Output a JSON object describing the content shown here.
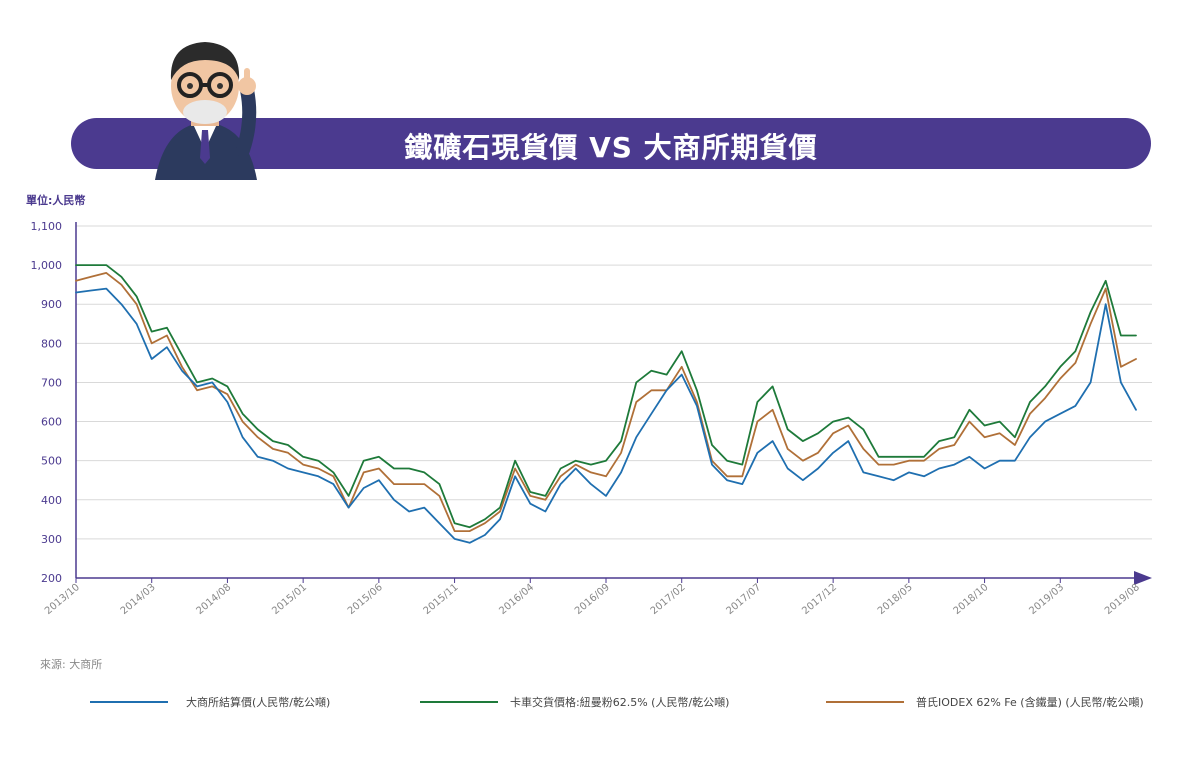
{
  "header": {
    "title": "鐵礦石現貨價 VS 大商所期貨價"
  },
  "unit_label": "單位:人民幣",
  "source": "來源: 大商所",
  "colors": {
    "accent": "#4b3a8f",
    "axis": "#4b3a8f",
    "grid": "#d9d9d9"
  },
  "chart_data": {
    "type": "line",
    "ylim": [
      200,
      1100
    ],
    "yticks": [
      200,
      300,
      400,
      500,
      600,
      700,
      800,
      900,
      1000,
      1100
    ],
    "ytick_labels": [
      "200",
      "300",
      "400",
      "500",
      "600",
      "700",
      "800",
      "900",
      "1,000",
      "1,100"
    ],
    "xticks": [
      "2013/10",
      "2014/03",
      "2014/08",
      "2015/01",
      "2015/06",
      "2015/11",
      "2016/04",
      "2016/09",
      "2017/02",
      "2017/07",
      "2017/12",
      "2018/05",
      "2018/10",
      "2019/03",
      "2019/08"
    ],
    "grid": true,
    "legend_position": "bottom",
    "x": [
      "2013/10",
      "2013/11",
      "2013/12",
      "2014/01",
      "2014/02",
      "2014/03",
      "2014/04",
      "2014/05",
      "2014/06",
      "2014/07",
      "2014/08",
      "2014/09",
      "2014/10",
      "2014/11",
      "2014/12",
      "2015/01",
      "2015/02",
      "2015/03",
      "2015/04",
      "2015/05",
      "2015/06",
      "2015/07",
      "2015/08",
      "2015/09",
      "2015/10",
      "2015/11",
      "2015/12",
      "2016/01",
      "2016/02",
      "2016/03",
      "2016/04",
      "2016/05",
      "2016/06",
      "2016/07",
      "2016/08",
      "2016/09",
      "2016/10",
      "2016/11",
      "2016/12",
      "2017/01",
      "2017/02",
      "2017/03",
      "2017/04",
      "2017/05",
      "2017/06",
      "2017/07",
      "2017/08",
      "2017/09",
      "2017/10",
      "2017/11",
      "2017/12",
      "2018/01",
      "2018/02",
      "2018/03",
      "2018/04",
      "2018/05",
      "2018/06",
      "2018/07",
      "2018/08",
      "2018/09",
      "2018/10",
      "2018/11",
      "2018/12",
      "2019/01",
      "2019/02",
      "2019/03",
      "2019/04",
      "2019/05",
      "2019/06",
      "2019/07",
      "2019/08"
    ],
    "series": [
      {
        "name": "大商所結算價(人民幣/乾公噸)",
        "color": "#1f6fb0",
        "values": [
          930,
          935,
          940,
          900,
          850,
          760,
          790,
          730,
          690,
          700,
          650,
          560,
          510,
          500,
          480,
          470,
          460,
          440,
          380,
          430,
          450,
          400,
          370,
          380,
          340,
          300,
          290,
          310,
          350,
          460,
          390,
          370,
          440,
          480,
          440,
          410,
          470,
          560,
          620,
          680,
          720,
          640,
          490,
          450,
          440,
          520,
          550,
          480,
          450,
          480,
          520,
          550,
          470,
          460,
          450,
          470,
          460,
          480,
          490,
          510,
          480,
          500,
          500,
          560,
          600,
          620,
          640,
          700,
          900,
          700,
          630
        ]
      },
      {
        "name": "卡車交貨價格:紐曼粉62.5% (人民幣/乾公噸)",
        "color": "#1e7a3a",
        "values": [
          1000,
          1000,
          1000,
          970,
          920,
          830,
          840,
          770,
          700,
          710,
          690,
          620,
          580,
          550,
          540,
          510,
          500,
          470,
          410,
          500,
          510,
          480,
          480,
          470,
          440,
          340,
          330,
          350,
          380,
          500,
          420,
          410,
          480,
          500,
          490,
          500,
          550,
          700,
          730,
          720,
          780,
          680,
          540,
          500,
          490,
          650,
          690,
          580,
          550,
          570,
          600,
          610,
          580,
          510,
          510,
          510,
          510,
          550,
          560,
          630,
          590,
          600,
          560,
          650,
          690,
          740,
          780,
          880,
          960,
          820,
          820
        ]
      },
      {
        "name": "普氏IODEX 62% Fe (含鐵量) (人民幣/乾公噸)",
        "color": "#b07038",
        "values": [
          960,
          970,
          980,
          950,
          900,
          800,
          820,
          740,
          680,
          690,
          670,
          600,
          560,
          530,
          520,
          490,
          480,
          460,
          380,
          470,
          480,
          440,
          440,
          440,
          410,
          320,
          320,
          340,
          370,
          480,
          410,
          400,
          460,
          490,
          470,
          460,
          520,
          650,
          680,
          680,
          740,
          650,
          500,
          460,
          460,
          600,
          630,
          530,
          500,
          520,
          570,
          590,
          530,
          490,
          490,
          500,
          500,
          530,
          540,
          600,
          560,
          570,
          540,
          620,
          660,
          710,
          750,
          850,
          940,
          740,
          760
        ]
      }
    ]
  }
}
